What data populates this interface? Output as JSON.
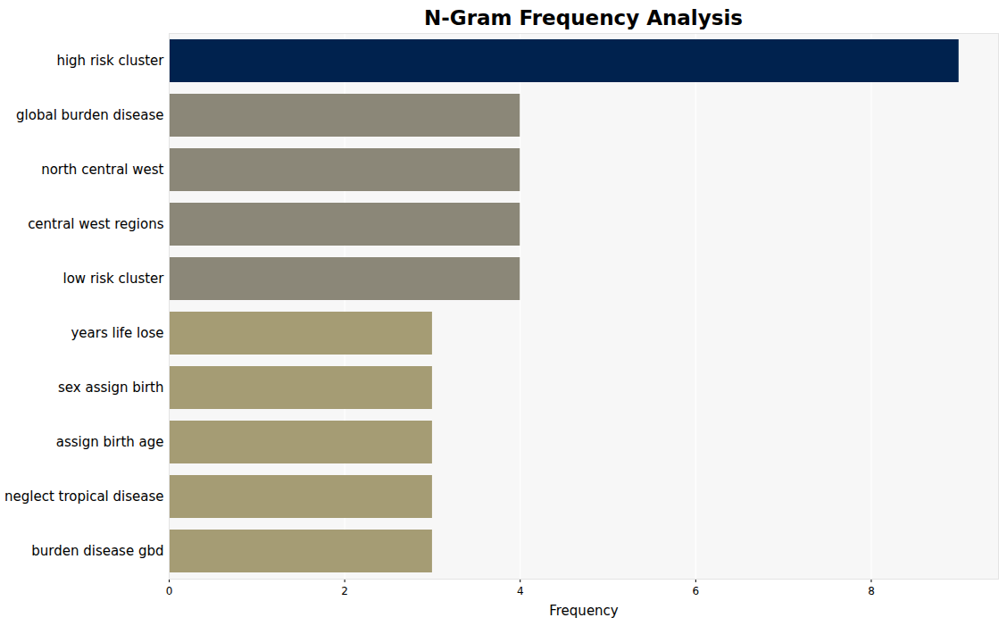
{
  "chart_data": {
    "type": "bar",
    "title": "N-Gram Frequency Analysis",
    "orientation": "horizontal",
    "categories": [
      "high risk cluster",
      "global burden disease",
      "north central west",
      "central west regions",
      "low risk cluster",
      "years life lose",
      "sex assign birth",
      "assign birth age",
      "neglect tropical disease",
      "burden disease gbd"
    ],
    "values": [
      9,
      4,
      4,
      4,
      4,
      3,
      3,
      3,
      3,
      3
    ],
    "colors": [
      "#00224e",
      "#8b8778",
      "#8b8778",
      "#8b8778",
      "#8b8778",
      "#a59c74",
      "#a59c74",
      "#a59c74",
      "#a59c74",
      "#a59c74"
    ],
    "x_label": "Frequency",
    "xlim": [
      0,
      9.45
    ],
    "xticks": [
      0,
      2,
      4,
      6,
      8
    ],
    "grid": true
  }
}
